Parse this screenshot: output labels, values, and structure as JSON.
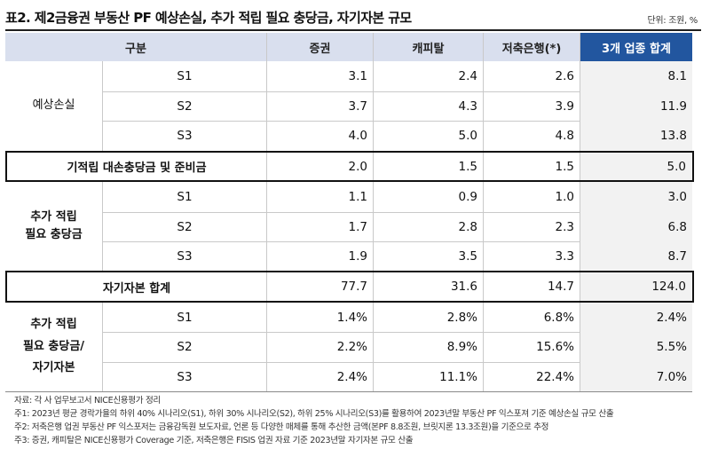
{
  "title": "표2. 제2금융권 부동산 PF 예상손실, 추가 적립 필요 충당금, 자기자본 규모",
  "unit": "단위: 조원, %",
  "columns": [
    "구분",
    "증권",
    "캐피탈",
    "저축은행(*)",
    "3개 업종 합계"
  ],
  "colors": {
    "header_bg": "#d9dfee",
    "total_header_bg": "#22569f",
    "total_col_bg": "#f2f2f2",
    "box_border": "#111111"
  },
  "groups": {
    "expected_loss": {
      "label": "예상손실",
      "rows": [
        {
          "scenario": "S1",
          "values": [
            "3.1",
            "2.4",
            "2.6",
            "8.1"
          ]
        },
        {
          "scenario": "S2",
          "values": [
            "3.7",
            "4.3",
            "3.9",
            "11.9"
          ]
        },
        {
          "scenario": "S3",
          "values": [
            "4.0",
            "5.0",
            "4.8",
            "13.8"
          ]
        }
      ]
    },
    "existing_reserve": {
      "label": "기적립 대손충당금 및 준비금",
      "values": [
        "2.0",
        "1.5",
        "1.5",
        "5.0"
      ]
    },
    "additional_provision": {
      "label_lines": [
        "추가 적립",
        "필요 충당금"
      ],
      "rows": [
        {
          "scenario": "S1",
          "values": [
            "1.1",
            "0.9",
            "1.0",
            "3.0"
          ]
        },
        {
          "scenario": "S2",
          "values": [
            "1.7",
            "2.8",
            "2.3",
            "6.8"
          ]
        },
        {
          "scenario": "S3",
          "values": [
            "1.9",
            "3.5",
            "3.3",
            "8.7"
          ]
        }
      ]
    },
    "equity_total": {
      "label": "자기자본 합계",
      "values": [
        "77.7",
        "31.6",
        "14.7",
        "124.0"
      ]
    },
    "ratio": {
      "label_lines": [
        "추가 적립",
        "필요 충당금/",
        "자기자본"
      ],
      "rows": [
        {
          "scenario": "S1",
          "values": [
            "1.4%",
            "2.8%",
            "6.8%",
            "2.4%"
          ]
        },
        {
          "scenario": "S2",
          "values": [
            "2.2%",
            "8.9%",
            "15.6%",
            "5.5%"
          ]
        },
        {
          "scenario": "S3",
          "values": [
            "2.4%",
            "11.1%",
            "22.4%",
            "7.0%"
          ]
        }
      ]
    }
  },
  "notes": [
    "자료: 각 사 업무보고서 NICE신용평가 정리",
    "주1: 2023년 평균 경락가율의 하위 40% 시나리오(S1), 하위 30% 시나리오(S2), 하위 25% 시나리오(S3)를 활용하여 2023년말 부동산 PF 익스포져 기준 예상손실 규모 산출",
    "주2: 저축은행 업권 부동산 PF 익스포저는 금융감독원 보도자료, 언론 등 다양한 매체를 통해 추산한 금액(본PF 8.8조원, 브릿지론 13.3조원)을 기준으로 추정",
    "주3: 증권, 캐피탈은 NICE신용평가 Coverage 기준, 저축은행은 FISIS 업권 자료 기준 2023년말 자기자본 규모 산출"
  ]
}
